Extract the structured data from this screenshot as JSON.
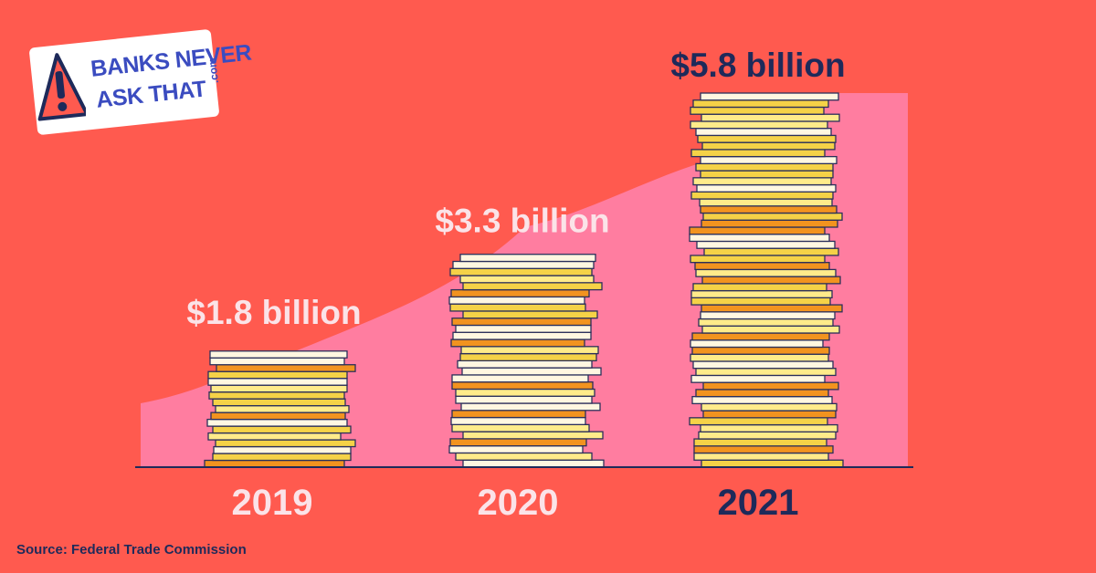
{
  "brand": {
    "line1": "BANKS NEVER",
    "line2": "ASK THAT",
    "dotcom": ".com",
    "icon": "warning-icon"
  },
  "source": "Source: Federal Trade Commission",
  "colors": {
    "background": "#FF5A4F",
    "area": "#FF7DA0",
    "axis": "#1E2A5A",
    "label_light": "#FBE3E8",
    "label_dark": "#1E2A5A",
    "coin_colors": [
      "#F5D247",
      "#FFEB8A",
      "#F2931F",
      "#FFF7E1"
    ],
    "coin_outline": "#2A2F5A"
  },
  "chart_data": {
    "type": "bar",
    "categories": [
      "2019",
      "2020",
      "2021"
    ],
    "values": [
      1.8,
      3.3,
      5.8
    ],
    "value_labels": [
      "$1.8 billion",
      "$3.3 billion",
      "$5.8 billion"
    ],
    "ylim": [
      0,
      5.8
    ],
    "title": "",
    "xlabel": "",
    "ylabel": "",
    "grid": false,
    "legend": "none"
  }
}
